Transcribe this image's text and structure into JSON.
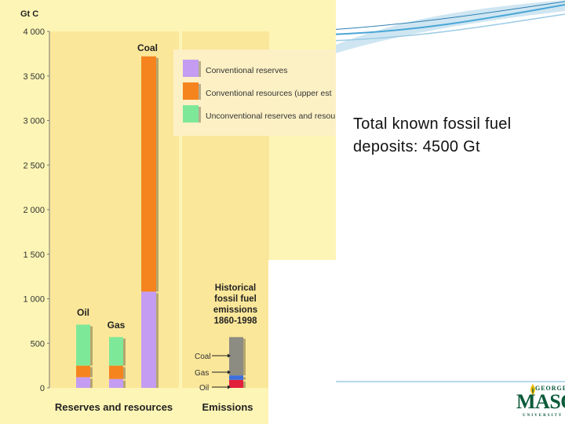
{
  "caption": {
    "line1": "Total known fossil fuel",
    "line2": "deposits: 4500 Gt"
  },
  "logo": {
    "top": "GEORGE",
    "main": "MASON",
    "bottom": "UNIVERSITY"
  },
  "colors": {
    "panel": "#fdf5b5",
    "section_band": "#fbe79a",
    "conventional_reserves": "#c49cf2",
    "conventional_resources": "#f5841f",
    "unconventional": "#7ee899",
    "coal_emissions": "#8c8c82",
    "gas_emissions": "#3b6fe0",
    "oil_emissions": "#e3203b",
    "slide_accent": "#4aa6d6"
  },
  "chart_data": {
    "type": "bar",
    "stacked": true,
    "ylabel": "Gt C",
    "ylim": [
      0,
      4000
    ],
    "yticks": [
      0,
      500,
      1000,
      1500,
      2000,
      2500,
      3000,
      3500,
      4000
    ],
    "ytick_labels": [
      "0",
      "500",
      "1 000",
      "1 500",
      "2 000",
      "2 500",
      "3 000",
      "3 500",
      "4 000"
    ],
    "sections": [
      "Reserves and resources",
      "Emissions"
    ],
    "legend": {
      "position": "top-right",
      "entries": [
        "Conventional reserves",
        "Conventional resources (upper est",
        "Unconventional reserves and resou"
      ]
    },
    "bars": [
      {
        "label": "Oil",
        "section": "Reserves and resources",
        "segments": [
          {
            "name": "Conventional reserves",
            "value": 120
          },
          {
            "name": "Conventional resources (upper est",
            "value": 130
          },
          {
            "name": "Unconventional reserves and resou",
            "value": 460
          }
        ]
      },
      {
        "label": "Gas",
        "section": "Reserves and resources",
        "segments": [
          {
            "name": "Conventional reserves",
            "value": 100
          },
          {
            "name": "Conventional resources (upper est",
            "value": 150
          },
          {
            "name": "Unconventional reserves and resou",
            "value": 320
          }
        ]
      },
      {
        "label": "Coal",
        "section": "Reserves and resources",
        "segments": [
          {
            "name": "Conventional reserves",
            "value": 1080
          },
          {
            "name": "Conventional resources (upper est",
            "value": 2640
          }
        ]
      },
      {
        "label": "Historical\nfossil fuel\nemissions\n1860-1998",
        "section": "Emissions",
        "segments": [
          {
            "name": "Oil",
            "value": 90
          },
          {
            "name": "Gas",
            "value": 50
          },
          {
            "name": "Coal",
            "value": 430
          }
        ],
        "segment_labels": [
          "Oil",
          "Gas",
          "Coal"
        ]
      }
    ]
  }
}
